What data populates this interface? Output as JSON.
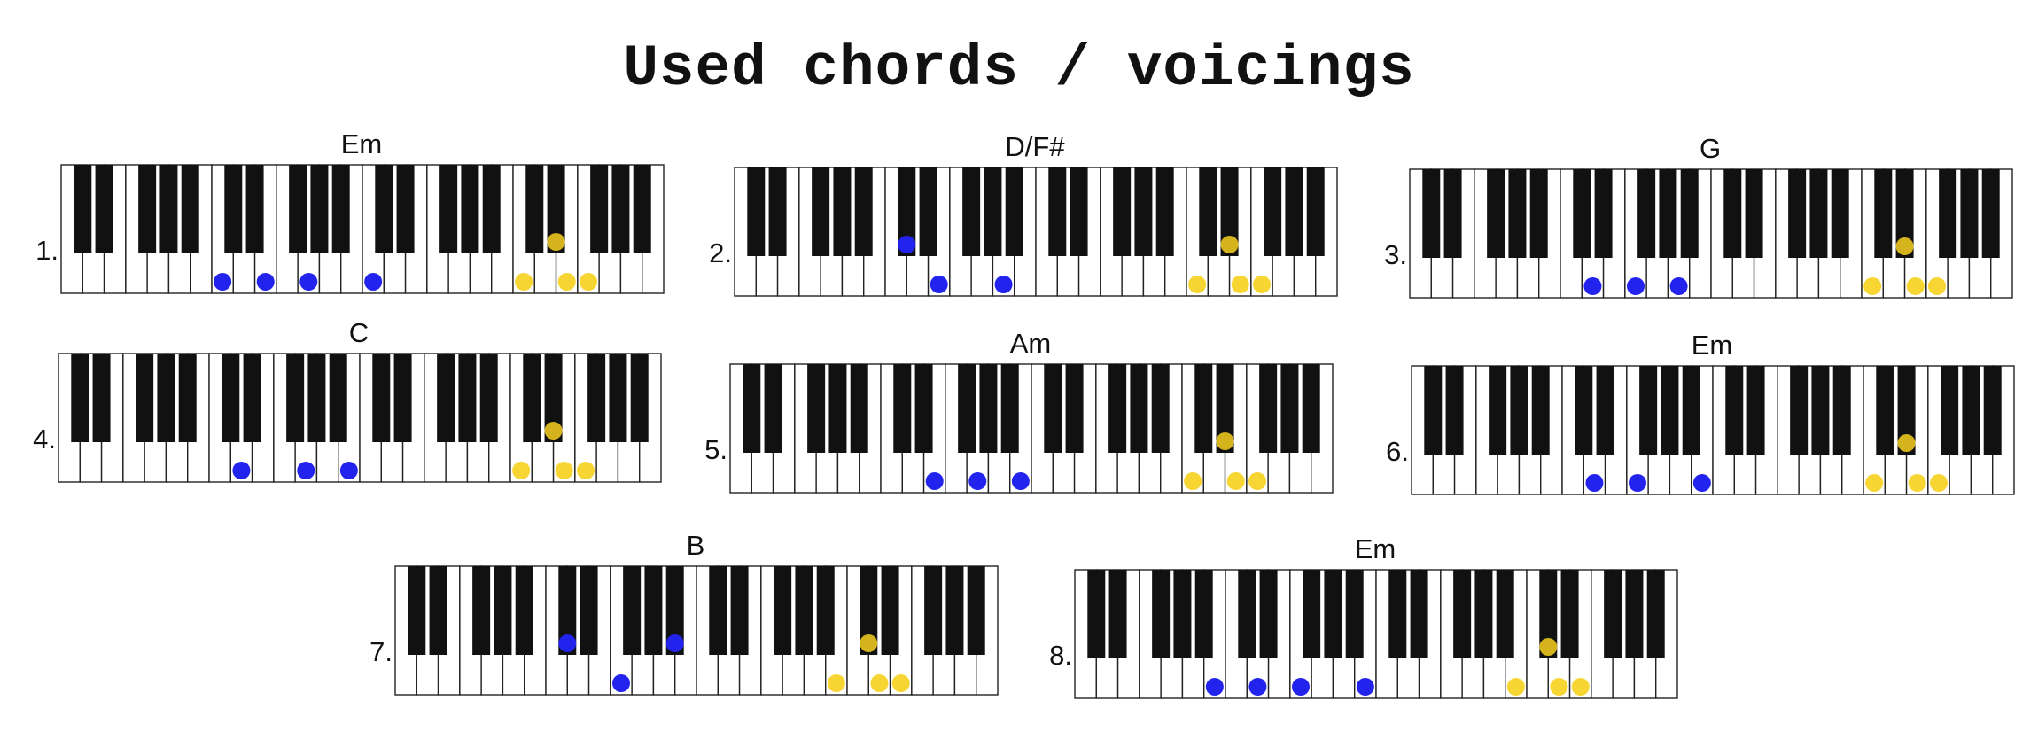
{
  "title": "Used chords / voicings",
  "colors": {
    "left_hand": "#2323ee",
    "right_hand": "#f7d533",
    "black_key": "#111111",
    "white_key": "#ffffff"
  },
  "chords": [
    {
      "number": "1.",
      "name": "Em",
      "left_hand": [
        7,
        9,
        11,
        14
      ],
      "right_hand": [
        21,
        23,
        24
      ],
      "right_hand_black": [
        22
      ],
      "left_hand_black": []
    },
    {
      "number": "2.",
      "name": "D/F#",
      "left_hand": [
        9,
        12
      ],
      "right_hand": [
        21,
        23,
        24
      ],
      "right_hand_black": [
        22
      ],
      "left_hand_black": [
        7
      ]
    },
    {
      "number": "3.",
      "name": "G",
      "left_hand": [
        8,
        10,
        12
      ],
      "right_hand": [
        21,
        23,
        24
      ],
      "right_hand_black": [
        22
      ],
      "left_hand_black": []
    },
    {
      "number": "4.",
      "name": "C",
      "left_hand": [
        8,
        11,
        13
      ],
      "right_hand": [
        21,
        23,
        24
      ],
      "right_hand_black": [
        22
      ],
      "left_hand_black": []
    },
    {
      "number": "5.",
      "name": "Am",
      "left_hand": [
        9,
        11,
        13
      ],
      "right_hand": [
        21,
        23,
        24
      ],
      "right_hand_black": [
        22
      ],
      "left_hand_black": []
    },
    {
      "number": "6.",
      "name": "Em",
      "left_hand": [
        8,
        10,
        13
      ],
      "right_hand": [
        21,
        23,
        24
      ],
      "right_hand_black": [
        22
      ],
      "left_hand_black": []
    },
    {
      "number": "7.",
      "name": "B",
      "left_hand": [
        10
      ],
      "right_hand": [
        20,
        22,
        23
      ],
      "right_hand_black": [
        21
      ],
      "left_hand_black": [
        7,
        12
      ]
    },
    {
      "number": "8.",
      "name": "Em",
      "left_hand": [
        6,
        8,
        10,
        13
      ],
      "right_hand": [
        20,
        22,
        23
      ],
      "right_hand_black": [
        21
      ],
      "left_hand_black": []
    }
  ]
}
